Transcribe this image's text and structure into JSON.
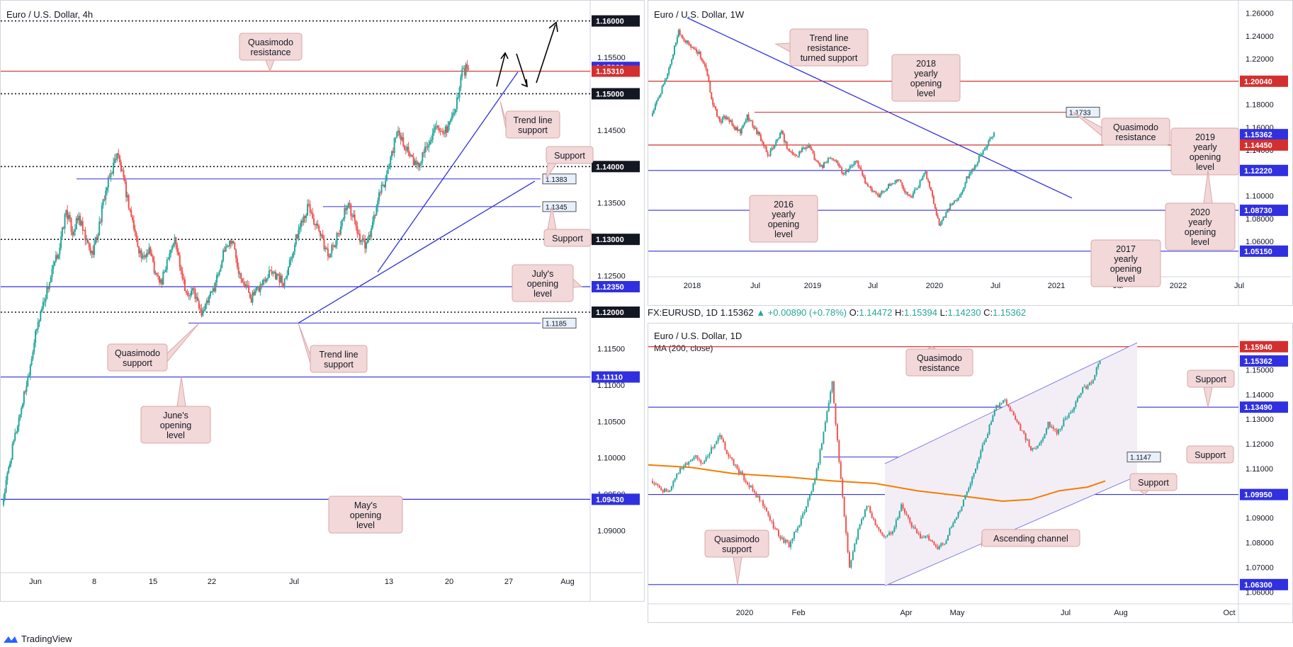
{
  "colors": {
    "bull": "#26a69a",
    "bear": "#ef5350",
    "blue": "#3030e0",
    "red": "#d32f2f",
    "callout_bg": "#f2d8d8",
    "callout_border": "#d9a7a7",
    "ma": "#f57c00",
    "channel_fill": "#f3eef6"
  },
  "footer": {
    "brand": "TradingView",
    "icon": "tradingview-logo-icon"
  },
  "header_1d": {
    "symbol": "FX:EURUSD, 1D",
    "last": "1.15362",
    "change": "+0.00890 (+0.78%)",
    "o_label": "O:",
    "o": "1.14472",
    "h_label": "H:",
    "h": "1.15394",
    "l_label": "L:",
    "l": "1.14230",
    "c_label": "C:",
    "c": "1.15362"
  },
  "chart_data": [
    {
      "id": "h4",
      "type": "candlestick",
      "title": "Euro / U.S. Dollar, 4h",
      "ylim": [
        1.085,
        1.162
      ],
      "y_ticks": [
        "1.09000",
        "1.09500",
        "1.10000",
        "1.10500",
        "1.11000",
        "1.11500",
        "1.12000",
        "1.12500",
        "1.13000",
        "1.13500",
        "1.14000",
        "1.14500",
        "1.15000",
        "1.15500",
        "1.16000"
      ],
      "x_ticks": [
        "Jun",
        "8",
        "15",
        "22",
        "Jul",
        "13",
        "20",
        "27",
        "Aug"
      ],
      "price_tags": [
        {
          "text": "1.16000",
          "color": "#131722"
        },
        {
          "text": "1.15362",
          "color": "#3030e0"
        },
        {
          "text": "1.15310",
          "color": "#d32f2f"
        },
        {
          "text": "1.15000",
          "color": "#131722"
        },
        {
          "text": "1.14000",
          "color": "#131722"
        },
        {
          "text": "1.13000",
          "color": "#131722"
        },
        {
          "text": "1.12350",
          "color": "#3030e0"
        },
        {
          "text": "1.12000",
          "color": "#131722"
        },
        {
          "text": "1.11110",
          "color": "#3030e0"
        },
        {
          "text": "1.09430",
          "color": "#3030e0"
        }
      ],
      "level_tags": [
        "1.1383",
        "1.1345",
        "1.1185"
      ],
      "callouts": [
        "Quasimodo resistance",
        "Trend line support",
        "Support",
        "Support",
        "July's opening level",
        "Quasimodo support",
        "Trend line support",
        "June's opening level",
        "May's opening level"
      ],
      "ohlc_path": [
        1.0935,
        1.0985,
        1.103,
        1.107,
        1.111,
        1.116,
        1.12,
        1.123,
        1.126,
        1.129,
        1.134,
        1.131,
        1.133,
        1.13,
        1.128,
        1.131,
        1.136,
        1.139,
        1.142,
        1.138,
        1.134,
        1.13,
        1.127,
        1.129,
        1.125,
        1.124,
        1.128,
        1.13,
        1.126,
        1.122,
        1.123,
        1.12,
        1.121,
        1.123,
        1.126,
        1.129,
        1.13,
        1.126,
        1.124,
        1.122,
        1.123,
        1.1245,
        1.126,
        1.125,
        1.124,
        1.127,
        1.13,
        1.133,
        1.1345,
        1.132,
        1.13,
        1.128,
        1.129,
        1.132,
        1.135,
        1.133,
        1.13,
        1.129,
        1.132,
        1.136,
        1.138,
        1.142,
        1.145,
        1.143,
        1.141,
        1.14,
        1.142,
        1.144,
        1.145,
        1.144,
        1.146,
        1.148,
        1.153,
        1.1536
      ]
    },
    {
      "id": "w1",
      "type": "candlestick",
      "title": "Euro / U.S. Dollar, 1W",
      "ylim": [
        1.034,
        1.266
      ],
      "y_ticks": [
        "1.06000",
        "1.08000",
        "1.10000",
        "1.12000",
        "1.14000",
        "1.16000",
        "1.18000",
        "1.20000",
        "1.22000",
        "1.24000",
        "1.26000"
      ],
      "x_ticks": [
        "2018",
        "Jul",
        "2019",
        "Jul",
        "2020",
        "Jul",
        "2021",
        "Jul",
        "2022",
        "Jul"
      ],
      "price_tags": [
        {
          "text": "1.20040",
          "color": "#d32f2f"
        },
        {
          "text": "1.15362",
          "color": "#3030e0"
        },
        {
          "text": "1.14450",
          "color": "#d32f2f"
        },
        {
          "text": "1.12220",
          "color": "#3030e0"
        },
        {
          "text": "1.08730",
          "color": "#3030e0"
        },
        {
          "text": "1.05150",
          "color": "#3030e0"
        }
      ],
      "level_tags": [
        "1.1733"
      ],
      "callouts": [
        "Trend line resistance-turned support",
        "2018 yearly opening level",
        "Quasimodo resistance",
        "2019 yearly opening level",
        "2016 yearly opening level",
        "2020 yearly opening level",
        "2017 yearly opening level"
      ],
      "ohlc_path": [
        1.17,
        1.185,
        1.2,
        1.22,
        1.245,
        1.235,
        1.23,
        1.225,
        1.21,
        1.18,
        1.165,
        1.17,
        1.16,
        1.155,
        1.17,
        1.16,
        1.15,
        1.135,
        1.145,
        1.155,
        1.14,
        1.135,
        1.14,
        1.145,
        1.13,
        1.125,
        1.135,
        1.13,
        1.12,
        1.125,
        1.13,
        1.115,
        1.105,
        1.1,
        1.105,
        1.11,
        1.115,
        1.105,
        1.1,
        1.11,
        1.12,
        1.1,
        1.075,
        1.085,
        1.095,
        1.1,
        1.115,
        1.125,
        1.135,
        1.145,
        1.1536
      ]
    },
    {
      "id": "d1",
      "type": "candlestick",
      "title": "Euro / U.S. Dollar, 1D",
      "ylim": [
        1.0575,
        1.1665
      ],
      "y_ticks": [
        "1.06000",
        "1.06300",
        "1.07000",
        "1.08000",
        "1.09000",
        "1.10000",
        "1.11000",
        "1.12000",
        "1.13000",
        "1.14000",
        "1.15000"
      ],
      "x_ticks": [
        "2020",
        "Feb",
        "Apr",
        "May",
        "Jul",
        "Aug",
        "Oct"
      ],
      "price_tags": [
        {
          "text": "1.15940",
          "color": "#d32f2f"
        },
        {
          "text": "1.15362",
          "color": "#3030e0"
        },
        {
          "text": "1.13490",
          "color": "#3030e0"
        },
        {
          "text": "1.09950",
          "color": "#3030e0"
        },
        {
          "text": "1.06300",
          "color": "#3030e0"
        }
      ],
      "level_tags": [
        "1.1147"
      ],
      "indicator": "MA (200, close)",
      "callouts": [
        "Quasimodo resistance",
        "Support",
        "Support",
        "Support",
        "Quasimodo support",
        "Ascending channel"
      ],
      "ohlc_path": [
        1.105,
        1.102,
        1.1,
        1.108,
        1.112,
        1.115,
        1.112,
        1.118,
        1.123,
        1.115,
        1.11,
        1.105,
        1.1,
        1.095,
        1.088,
        1.082,
        1.079,
        1.086,
        1.095,
        1.105,
        1.125,
        1.145,
        1.105,
        1.07,
        1.085,
        1.095,
        1.088,
        1.082,
        1.085,
        1.095,
        1.088,
        1.083,
        1.082,
        1.078,
        1.08,
        1.088,
        1.095,
        1.105,
        1.115,
        1.125,
        1.135,
        1.138,
        1.132,
        1.125,
        1.118,
        1.12,
        1.128,
        1.125,
        1.13,
        1.135,
        1.142,
        1.145,
        1.1536
      ]
    }
  ]
}
